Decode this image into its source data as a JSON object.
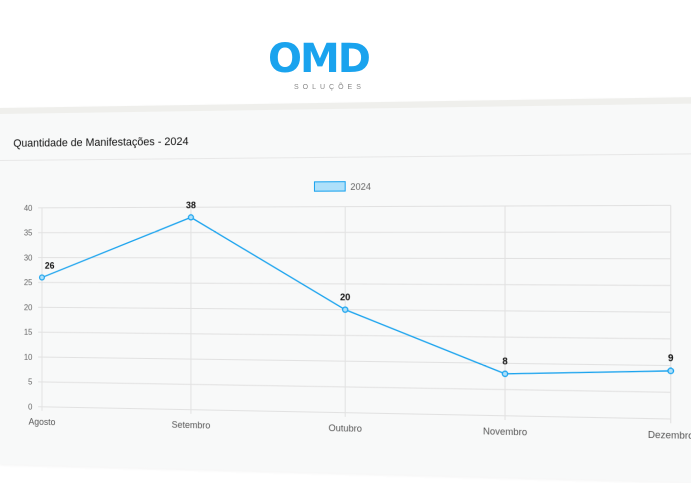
{
  "logo": {
    "text": "OMD",
    "subtext": "SOLUÇÕES"
  },
  "card": {
    "title": "Quantidade de Manifestações - 2024"
  },
  "chart_data": {
    "type": "line",
    "title": "",
    "categories": [
      "Agosto",
      "Setembro",
      "Outubro",
      "Novembro",
      "Dezembro"
    ],
    "series": [
      {
        "name": "2024",
        "values": [
          26,
          38,
          20,
          8,
          9
        ],
        "color": "#1aa3ee"
      }
    ],
    "ylim": [
      0,
      40
    ],
    "yticks": [
      0,
      5,
      10,
      15,
      20,
      25,
      30,
      35,
      40
    ],
    "grid": true,
    "legend": "top-center",
    "data_labels": true
  }
}
